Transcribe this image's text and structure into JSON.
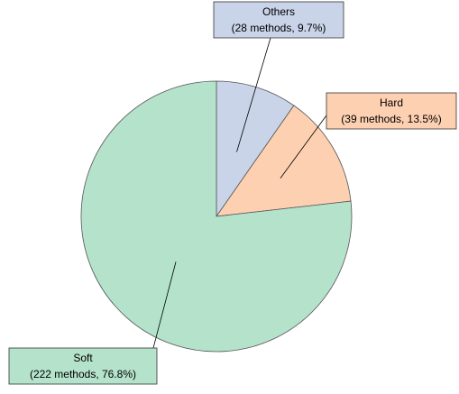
{
  "chart_data": {
    "type": "pie",
    "categories": [
      "Others",
      "Hard",
      "Soft"
    ],
    "values": [
      9.7,
      13.5,
      76.8
    ],
    "value_labels": [
      "(28 methods, 9.7%)",
      "(39 methods, 13.5%)",
      "(222 methods, 76.8%)"
    ],
    "colors": [
      "#c9d4e9",
      "#fdd0b1",
      "#b4e2cb"
    ]
  }
}
